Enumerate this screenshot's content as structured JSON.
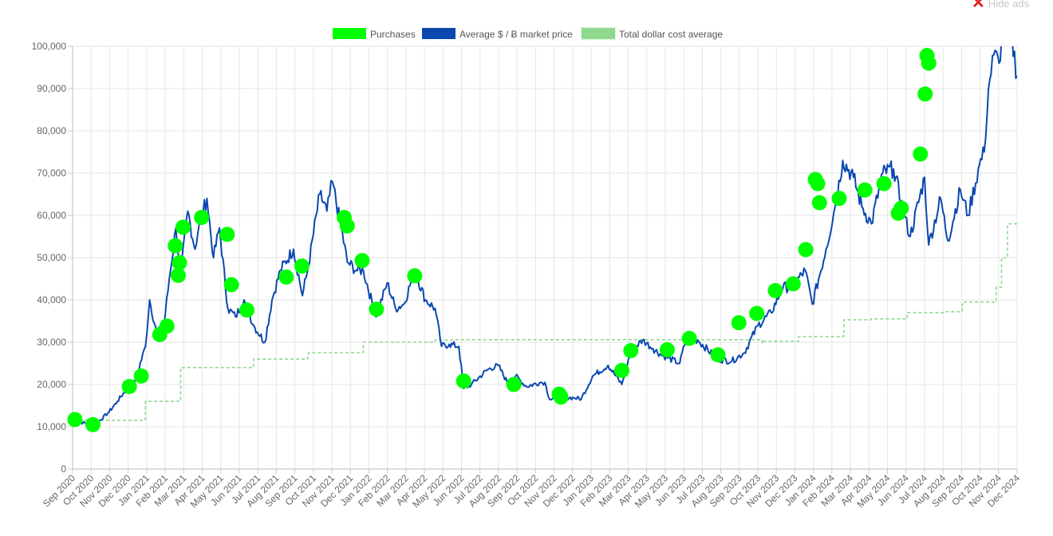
{
  "hide_ads": {
    "label": "Hide ads"
  },
  "colors": {
    "purchases": "#00ff00",
    "market": "#0a48b0",
    "dca": "#8fd98f",
    "grid": "#e6e6e6"
  },
  "chart_data": {
    "type": "line",
    "title": "",
    "xlabel": "",
    "ylabel": "",
    "ylim": [
      0,
      100000
    ],
    "y_ticks": [
      "0",
      "10,000",
      "20,000",
      "30,000",
      "40,000",
      "50,000",
      "60,000",
      "70,000",
      "80,000",
      "90,000",
      "100,000"
    ],
    "x_ticks": [
      "Sep 2020",
      "Oct 2020",
      "Nov 2020",
      "Dec 2020",
      "Jan 2021",
      "Feb 2021",
      "Mar 2021",
      "Apr 2021",
      "May 2021",
      "Jun 2021",
      "Jul 2021",
      "Aug 2021",
      "Sep 2021",
      "Oct 2021",
      "Nov 2021",
      "Dec 2021",
      "Jan 2022",
      "Feb 2022",
      "Mar 2022",
      "Apr 2022",
      "May 2022",
      "Jun 2022",
      "Jul 2022",
      "Aug 2022",
      "Sep 2022",
      "Oct 2022",
      "Nov 2022",
      "Dec 2022",
      "Jan 2023",
      "Feb 2023",
      "Mar 2023",
      "Apr 2023",
      "May 2023",
      "Jun 2023",
      "Jul 2023",
      "Aug 2023",
      "Sep 2023",
      "Oct 2023",
      "Nov 2023",
      "Dec 2023",
      "Jan 2024",
      "Feb 2024",
      "Mar 2024",
      "Apr 2024",
      "May 2024",
      "Jun 2024",
      "Jul 2024",
      "Aug 2024",
      "Sep 2024",
      "Oct 2024",
      "Nov 2024",
      "Dec 2024"
    ],
    "x_range": [
      "2020-09-01",
      "2024-12-31"
    ],
    "grid": true,
    "legend_position": "top",
    "legend": [
      "Purchases",
      "Average $ / Ƀ market price",
      "Total dollar cost average"
    ],
    "series": [
      {
        "name": "Average $ / Ƀ market price",
        "type": "line",
        "points": [
          [
            "2020-09-01",
            11800
          ],
          [
            "2020-09-15",
            11000
          ],
          [
            "2020-10-01",
            10700
          ],
          [
            "2020-10-15",
            11300
          ],
          [
            "2020-11-01",
            13500
          ],
          [
            "2020-11-15",
            16000
          ],
          [
            "2020-12-01",
            19000
          ],
          [
            "2020-12-15",
            21000
          ],
          [
            "2021-01-01",
            29000
          ],
          [
            "2021-01-08",
            40000
          ],
          [
            "2021-01-20",
            32000
          ],
          [
            "2021-02-01",
            34000
          ],
          [
            "2021-02-10",
            45000
          ],
          [
            "2021-02-21",
            57000
          ],
          [
            "2021-03-01",
            46000
          ],
          [
            "2021-03-13",
            61000
          ],
          [
            "2021-03-25",
            52000
          ],
          [
            "2021-04-01",
            58000
          ],
          [
            "2021-04-14",
            64000
          ],
          [
            "2021-04-25",
            50000
          ],
          [
            "2021-05-05",
            57000
          ],
          [
            "2021-05-19",
            38000
          ],
          [
            "2021-06-01",
            36000
          ],
          [
            "2021-06-15",
            40000
          ],
          [
            "2021-07-01",
            34000
          ],
          [
            "2021-07-20",
            30000
          ],
          [
            "2021-08-01",
            40000
          ],
          [
            "2021-08-15",
            47000
          ],
          [
            "2021-09-06",
            52000
          ],
          [
            "2021-09-21",
            41000
          ],
          [
            "2021-10-01",
            48000
          ],
          [
            "2021-10-20",
            65000
          ],
          [
            "2021-11-01",
            61000
          ],
          [
            "2021-11-10",
            68000
          ],
          [
            "2021-11-25",
            57000
          ],
          [
            "2021-12-05",
            49000
          ],
          [
            "2021-12-20",
            47000
          ],
          [
            "2022-01-01",
            47000
          ],
          [
            "2022-01-22",
            36000
          ],
          [
            "2022-02-10",
            44000
          ],
          [
            "2022-02-24",
            38000
          ],
          [
            "2022-03-10",
            39000
          ],
          [
            "2022-03-28",
            47000
          ],
          [
            "2022-04-15",
            40000
          ],
          [
            "2022-05-01",
            38000
          ],
          [
            "2022-05-12",
            29000
          ],
          [
            "2022-05-25",
            29500
          ],
          [
            "2022-06-10",
            29000
          ],
          [
            "2022-06-18",
            19000
          ],
          [
            "2022-07-01",
            20000
          ],
          [
            "2022-07-28",
            23500
          ],
          [
            "2022-08-15",
            24500
          ],
          [
            "2022-09-01",
            20000
          ],
          [
            "2022-09-13",
            22000
          ],
          [
            "2022-10-01",
            19500
          ],
          [
            "2022-10-25",
            20500
          ],
          [
            "2022-11-01",
            20500
          ],
          [
            "2022-11-09",
            16500
          ],
          [
            "2022-12-01",
            17000
          ],
          [
            "2022-12-20",
            16800
          ],
          [
            "2023-01-01",
            16600
          ],
          [
            "2023-01-20",
            22000
          ],
          [
            "2023-02-15",
            24500
          ],
          [
            "2023-03-10",
            20000
          ],
          [
            "2023-03-25",
            28000
          ],
          [
            "2023-04-14",
            30500
          ],
          [
            "2023-05-01",
            28500
          ],
          [
            "2023-05-15",
            27000
          ],
          [
            "2023-06-15",
            25000
          ],
          [
            "2023-06-25",
            30500
          ],
          [
            "2023-07-15",
            30500
          ],
          [
            "2023-08-17",
            26000
          ],
          [
            "2023-09-10",
            25500
          ],
          [
            "2023-10-01",
            27500
          ],
          [
            "2023-10-24",
            34000
          ],
          [
            "2023-11-15",
            37000
          ],
          [
            "2023-12-05",
            43000
          ],
          [
            "2023-12-20",
            43000
          ],
          [
            "2024-01-11",
            47000
          ],
          [
            "2024-01-23",
            39000
          ],
          [
            "2024-02-15",
            52000
          ],
          [
            "2024-03-01",
            62000
          ],
          [
            "2024-03-14",
            73000
          ],
          [
            "2024-04-01",
            69000
          ],
          [
            "2024-04-15",
            62000
          ],
          [
            "2024-05-01",
            58000
          ],
          [
            "2024-05-20",
            70000
          ],
          [
            "2024-06-07",
            71000
          ],
          [
            "2024-06-25",
            60000
          ],
          [
            "2024-07-05",
            55000
          ],
          [
            "2024-07-29",
            69000
          ],
          [
            "2024-08-05",
            53000
          ],
          [
            "2024-08-25",
            64000
          ],
          [
            "2024-09-06",
            54000
          ],
          [
            "2024-09-27",
            66000
          ],
          [
            "2024-10-10",
            60000
          ],
          [
            "2024-10-29",
            72000
          ],
          [
            "2024-11-06",
            75000
          ],
          [
            "2024-11-13",
            90000
          ],
          [
            "2024-11-22",
            98000
          ],
          [
            "2024-12-01",
            96000
          ],
          [
            "2024-12-05",
            102000
          ],
          [
            "2024-12-18",
            106000
          ],
          [
            "2024-12-31",
            93000
          ]
        ]
      },
      {
        "name": "Total dollar cost average",
        "type": "step",
        "points": [
          [
            "2020-09-01",
            11500
          ],
          [
            "2020-12-31",
            11800
          ],
          [
            "2021-01-01",
            16000
          ],
          [
            "2021-02-25",
            16200
          ],
          [
            "2021-03-01",
            24000
          ],
          [
            "2021-06-30",
            24300
          ],
          [
            "2021-07-01",
            26000
          ],
          [
            "2021-09-30",
            27000
          ],
          [
            "2021-10-01",
            27500
          ],
          [
            "2021-12-31",
            27700
          ],
          [
            "2022-01-01",
            30000
          ],
          [
            "2022-05-01",
            30500
          ],
          [
            "2022-06-01",
            30600
          ],
          [
            "2023-10-31",
            29800
          ],
          [
            "2023-11-01",
            30200
          ],
          [
            "2023-12-31",
            31300
          ],
          [
            "2024-03-15",
            31600
          ],
          [
            "2024-03-16",
            35300
          ],
          [
            "2024-04-30",
            35500
          ],
          [
            "2024-06-30",
            37000
          ],
          [
            "2024-08-31",
            37200
          ],
          [
            "2024-09-30",
            39000
          ],
          [
            "2024-10-01",
            39500
          ],
          [
            "2024-11-25",
            39500
          ],
          [
            "2024-11-26",
            43000
          ],
          [
            "2024-12-05",
            50000
          ],
          [
            "2024-12-15",
            58000
          ],
          [
            "2024-12-31",
            58500
          ]
        ]
      },
      {
        "name": "Purchases",
        "type": "scatter",
        "points": [
          [
            "2020-09-05",
            11700
          ],
          [
            "2020-10-05",
            10500
          ],
          [
            "2020-12-05",
            19500
          ],
          [
            "2020-12-25",
            22000
          ],
          [
            "2021-01-25",
            31800
          ],
          [
            "2021-02-06",
            33800
          ],
          [
            "2021-02-20",
            52800
          ],
          [
            "2021-02-25",
            45800
          ],
          [
            "2021-02-27",
            48800
          ],
          [
            "2021-03-05",
            57200
          ],
          [
            "2021-04-05",
            59500
          ],
          [
            "2021-05-18",
            55500
          ],
          [
            "2021-05-25",
            43600
          ],
          [
            "2021-06-20",
            37600
          ],
          [
            "2021-08-25",
            45400
          ],
          [
            "2021-09-20",
            48000
          ],
          [
            "2021-11-30",
            59500
          ],
          [
            "2021-12-05",
            57500
          ],
          [
            "2021-12-30",
            49300
          ],
          [
            "2022-01-23",
            37800
          ],
          [
            "2022-03-28",
            45700
          ],
          [
            "2022-06-18",
            20800
          ],
          [
            "2022-09-10",
            20000
          ],
          [
            "2022-11-25",
            17700
          ],
          [
            "2022-11-28",
            17000
          ],
          [
            "2023-03-10",
            23300
          ],
          [
            "2023-03-25",
            28000
          ],
          [
            "2023-05-25",
            28200
          ],
          [
            "2023-07-01",
            30900
          ],
          [
            "2023-08-18",
            27000
          ],
          [
            "2023-09-22",
            34600
          ],
          [
            "2023-10-22",
            36800
          ],
          [
            "2023-11-22",
            42200
          ],
          [
            "2023-12-22",
            43800
          ],
          [
            "2024-01-12",
            51900
          ],
          [
            "2024-01-28",
            68500
          ],
          [
            "2024-02-01",
            67500
          ],
          [
            "2024-02-04",
            63000
          ],
          [
            "2024-03-08",
            64000
          ],
          [
            "2024-04-20",
            66000
          ],
          [
            "2024-05-22",
            67500
          ],
          [
            "2024-06-15",
            60500
          ],
          [
            "2024-06-20",
            61700
          ],
          [
            "2024-07-22",
            74500
          ],
          [
            "2024-07-30",
            88700
          ],
          [
            "2024-08-02",
            97800
          ],
          [
            "2024-08-05",
            96000
          ]
        ]
      }
    ]
  }
}
